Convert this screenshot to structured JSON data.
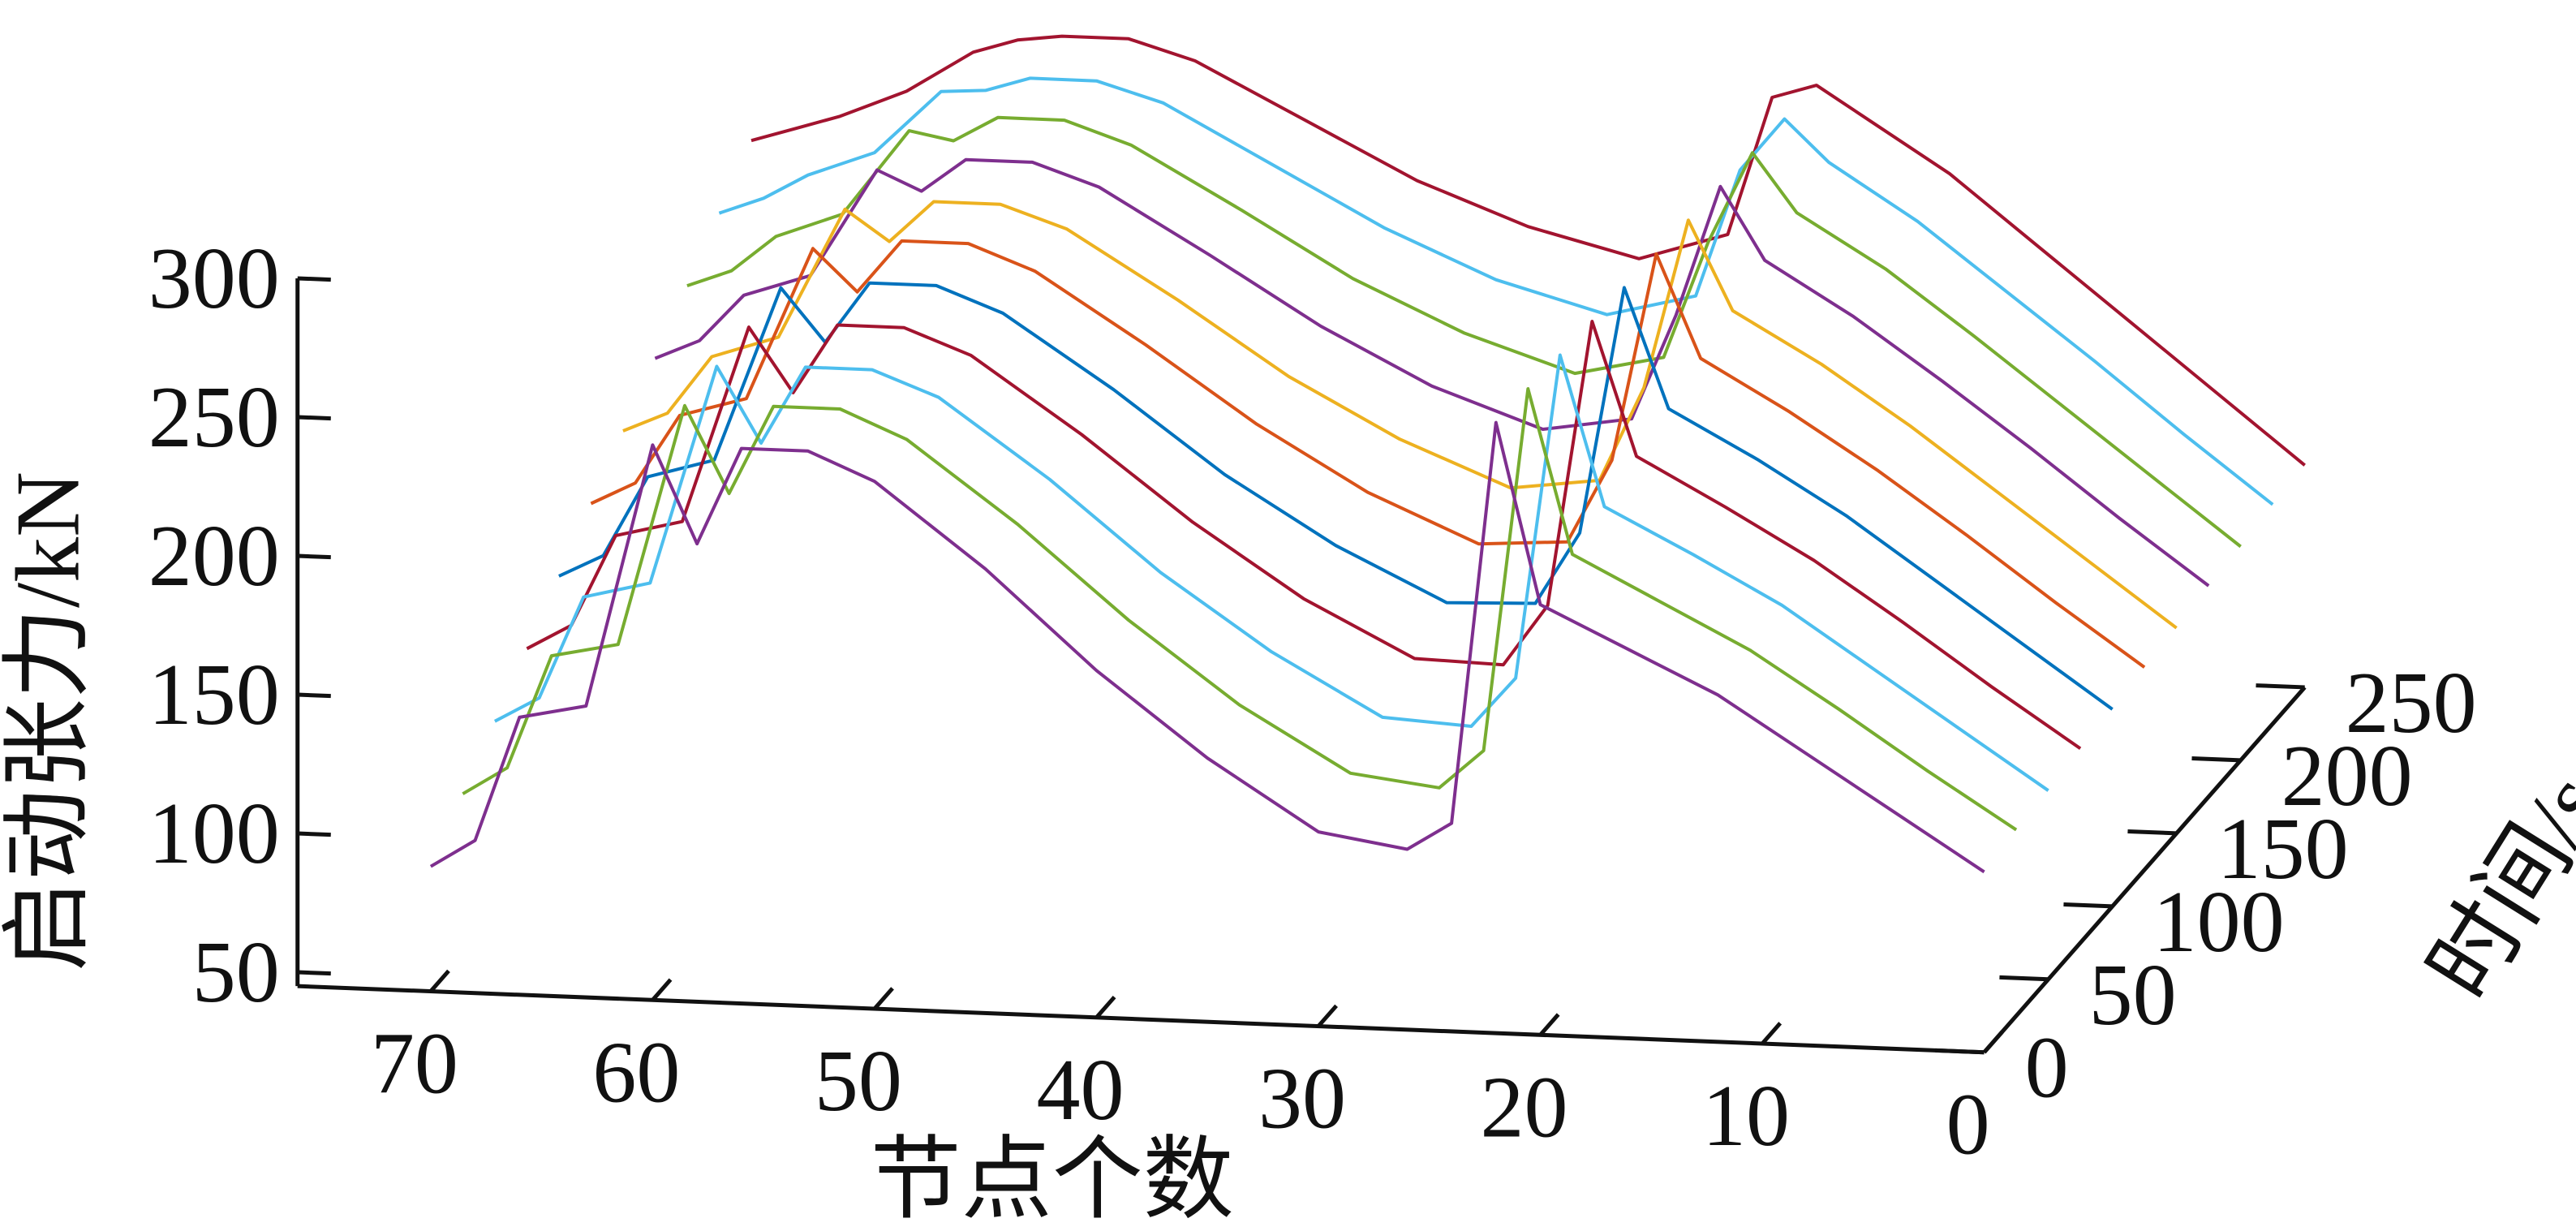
{
  "chart_data": {
    "type": "line3d",
    "xlabel": "节点个数",
    "ylabel": "时间/s",
    "zlabel": "启动张力/kN",
    "x": [
      0,
      4,
      8,
      12,
      16,
      20,
      22,
      24,
      26,
      30,
      35,
      40,
      45,
      50,
      53,
      56,
      58,
      60,
      63,
      66,
      68,
      70
    ],
    "xlim": [
      0,
      76
    ],
    "xticks": [
      0,
      10,
      20,
      30,
      40,
      50,
      60,
      70
    ],
    "ylim": [
      0,
      250
    ],
    "yticks": [
      0,
      50,
      100,
      150,
      200,
      250
    ],
    "zlim": [
      45,
      300
    ],
    "zticks": [
      50,
      100,
      150,
      200,
      250,
      300
    ],
    "series": [
      {
        "y": 250,
        "color": "#a2142f",
        "values": [
          125,
          150,
          175,
          200,
          225,
          245,
          255,
          250,
          200,
          190,
          200,
          215,
          235,
          255,
          262,
          262,
          260,
          255,
          240,
          230,
          225,
          220
        ]
      },
      {
        "y": 225,
        "color": "#4dbeee",
        "values": [
          124,
          148,
          173,
          197,
          221,
          241,
          256,
          237,
          191,
          183,
          194,
          211,
          232,
          253,
          260,
          260,
          255,
          254,
          231,
          222,
          213,
          207
        ]
      },
      {
        "y": 200,
        "color": "#77ac30",
        "values": [
          122,
          146,
          170,
          194,
          217,
          236,
          257,
          224,
          182,
          175,
          188,
          206,
          229,
          251,
          259,
          259,
          250,
          253,
          222,
          213,
          200,
          194
        ]
      },
      {
        "y": 175,
        "color": "#7e2f8e",
        "values": [
          121,
          144,
          168,
          191,
          213,
          232,
          258,
          211,
          173,
          168,
          182,
          202,
          226,
          249,
          257,
          257,
          245,
          252,
          213,
          205,
          188,
          181
        ]
      },
      {
        "y": 150,
        "color": "#edb120",
        "values": [
          119,
          142,
          165,
          188,
          209,
          227,
          259,
          198,
          164,
          160,
          176,
          197,
          223,
          247,
          255,
          255,
          240,
          251,
          204,
          196,
          175,
          168
        ]
      },
      {
        "y": 125,
        "color": "#d95319",
        "values": [
          118,
          140,
          163,
          185,
          205,
          223,
          260,
          185,
          155,
          153,
          170,
          193,
          220,
          245,
          254,
          254,
          235,
          250,
          195,
          188,
          163,
          155
        ]
      },
      {
        "y": 100,
        "color": "#0072bd",
        "values": [
          116,
          138,
          160,
          182,
          201,
          218,
          261,
          172,
          146,
          145,
          164,
          188,
          217,
          243,
          252,
          252,
          230,
          249,
          186,
          179,
          150,
          142
        ]
      },
      {
        "y": 75,
        "color": "#a2142f",
        "values": [
          115,
          136,
          158,
          179,
          197,
          214,
          262,
          159,
          137,
          138,
          158,
          184,
          214,
          241,
          250,
          250,
          225,
          248,
          177,
          171,
          138,
          129
        ]
      },
      {
        "y": 50,
        "color": "#4dbeee",
        "values": [
          113,
          134,
          155,
          176,
          193,
          209,
          263,
          146,
          128,
          130,
          152,
          179,
          211,
          239,
          248,
          248,
          220,
          247,
          168,
          162,
          125,
          116
        ]
      },
      {
        "y": 25,
        "color": "#77ac30",
        "values": [
          112,
          132,
          153,
          173,
          189,
          205,
          264,
          133,
          119,
          123,
          146,
          175,
          208,
          237,
          247,
          247,
          215,
          246,
          159,
          154,
          113,
          103
        ]
      },
      {
        "y": 0,
        "color": "#7e2f8e",
        "values": [
          110,
          130,
          150,
          170,
          185,
          200,
          265,
          120,
          110,
          115,
          140,
          170,
          205,
          235,
          245,
          245,
          210,
          245,
          150,
          145,
          100,
          90
        ]
      }
    ]
  }
}
